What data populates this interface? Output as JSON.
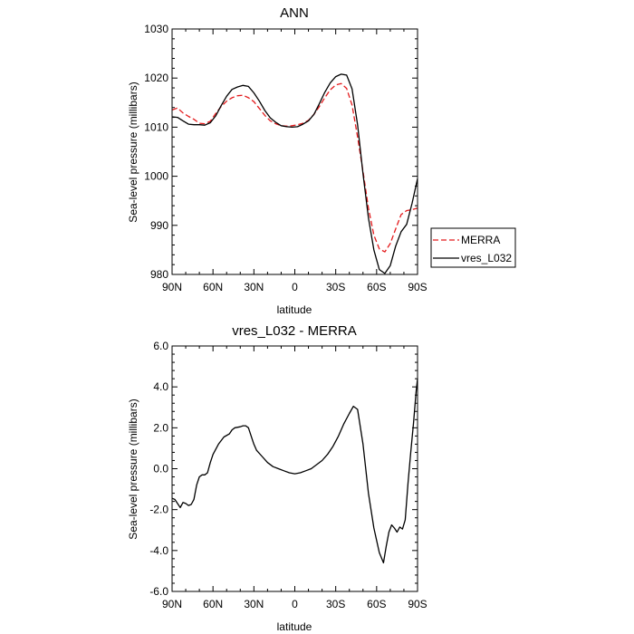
{
  "chart_data": [
    {
      "type": "line",
      "title": "ANN",
      "xlabel": "latitude",
      "ylabel": "Sea-level pressure (millibars)",
      "x_ticks": [
        "90N",
        "60N",
        "30N",
        "0",
        "30S",
        "60S",
        "90S"
      ],
      "x_tick_values": [
        -90,
        -60,
        -30,
        0,
        30,
        60,
        90
      ],
      "xlim": [
        -90,
        90
      ],
      "ylim": [
        980,
        1030
      ],
      "y_ticks": [
        "980",
        "990",
        "1000",
        "1010",
        "1020",
        "1030"
      ],
      "y_tick_values": [
        980,
        990,
        1000,
        1010,
        1020,
        1030
      ],
      "legend_position": "outside-right-bottom",
      "series": [
        {
          "name": "MERRA",
          "color": "#e41a1c",
          "dash": "dashed",
          "points": [
            [
              -90,
              1013.5
            ],
            [
              -86,
              1013.9
            ],
            [
              -82,
              1012.9
            ],
            [
              -78,
              1012.2
            ],
            [
              -74,
              1011.6
            ],
            [
              -70,
              1010.8
            ],
            [
              -66,
              1010.7
            ],
            [
              -62,
              1011.2
            ],
            [
              -58,
              1012.8
            ],
            [
              -54,
              1014.2
            ],
            [
              -50,
              1015.3
            ],
            [
              -46,
              1016.0
            ],
            [
              -42,
              1016.4
            ],
            [
              -38,
              1016.5
            ],
            [
              -34,
              1016.0
            ],
            [
              -30,
              1015.2
            ],
            [
              -26,
              1013.8
            ],
            [
              -22,
              1012.4
            ],
            [
              -18,
              1011.3
            ],
            [
              -14,
              1010.7
            ],
            [
              -10,
              1010.3
            ],
            [
              -6,
              1010.2
            ],
            [
              -2,
              1010.3
            ],
            [
              2,
              1010.5
            ],
            [
              6,
              1010.8
            ],
            [
              10,
              1011.4
            ],
            [
              14,
              1012.6
            ],
            [
              18,
              1014.2
            ],
            [
              22,
              1016.0
            ],
            [
              26,
              1017.6
            ],
            [
              30,
              1018.6
            ],
            [
              34,
              1018.9
            ],
            [
              38,
              1017.9
            ],
            [
              42,
              1014.5
            ],
            [
              46,
              1008.0
            ],
            [
              50,
              1001.0
            ],
            [
              54,
              993.5
            ],
            [
              58,
              988.0
            ],
            [
              62,
              985.2
            ],
            [
              66,
              984.6
            ],
            [
              70,
              986.3
            ],
            [
              74,
              989.3
            ],
            [
              78,
              992.2
            ],
            [
              82,
              993.0
            ],
            [
              86,
              993.2
            ],
            [
              90,
              993.5
            ]
          ]
        },
        {
          "name": "vres_L032",
          "color": "#000000",
          "dash": "solid",
          "points": [
            [
              -90,
              1012.1
            ],
            [
              -86,
              1012.0
            ],
            [
              -82,
              1011.3
            ],
            [
              -78,
              1010.6
            ],
            [
              -74,
              1010.5
            ],
            [
              -70,
              1010.5
            ],
            [
              -66,
              1010.4
            ],
            [
              -62,
              1010.9
            ],
            [
              -58,
              1012.3
            ],
            [
              -54,
              1014.4
            ],
            [
              -50,
              1016.3
            ],
            [
              -46,
              1017.7
            ],
            [
              -42,
              1018.2
            ],
            [
              -38,
              1018.5
            ],
            [
              -34,
              1018.3
            ],
            [
              -30,
              1017.0
            ],
            [
              -26,
              1015.3
            ],
            [
              -22,
              1013.4
            ],
            [
              -18,
              1011.9
            ],
            [
              -14,
              1011.0
            ],
            [
              -10,
              1010.3
            ],
            [
              -6,
              1010.1
            ],
            [
              -2,
              1010.0
            ],
            [
              2,
              1010.1
            ],
            [
              6,
              1010.6
            ],
            [
              10,
              1011.3
            ],
            [
              14,
              1012.6
            ],
            [
              18,
              1014.8
            ],
            [
              22,
              1017.1
            ],
            [
              26,
              1019.0
            ],
            [
              30,
              1020.3
            ],
            [
              34,
              1020.8
            ],
            [
              38,
              1020.6
            ],
            [
              42,
              1017.8
            ],
            [
              46,
              1010.5
            ],
            [
              50,
              1000.5
            ],
            [
              54,
              991.5
            ],
            [
              58,
              985.0
            ],
            [
              62,
              981.0
            ],
            [
              66,
              980.2
            ],
            [
              70,
              981.8
            ],
            [
              74,
              985.8
            ],
            [
              78,
              988.7
            ],
            [
              82,
              990.2
            ],
            [
              86,
              994.5
            ],
            [
              90,
              999.5
            ]
          ]
        }
      ]
    },
    {
      "type": "line",
      "title": "vres_L032 - MERRA",
      "xlabel": "latitude",
      "ylabel": "Sea-level pressure (millibars)",
      "x_ticks": [
        "90N",
        "60N",
        "30N",
        "0",
        "30S",
        "60S",
        "90S"
      ],
      "x_tick_values": [
        -90,
        -60,
        -30,
        0,
        30,
        60,
        90
      ],
      "xlim": [
        -90,
        90
      ],
      "ylim": [
        -6,
        6
      ],
      "y_ticks": [
        "-6.0",
        "-4.0",
        "-2.0",
        "0.0",
        "2.0",
        "4.0",
        "6.0"
      ],
      "y_tick_values": [
        -6,
        -4,
        -2,
        0,
        2,
        4,
        6
      ],
      "series": [
        {
          "name": "",
          "color": "#000000",
          "dash": "solid",
          "points": [
            [
              -90,
              -1.45
            ],
            [
              -88,
              -1.5
            ],
            [
              -86,
              -1.7
            ],
            [
              -84,
              -1.9
            ],
            [
              -82,
              -1.65
            ],
            [
              -80,
              -1.7
            ],
            [
              -78,
              -1.8
            ],
            [
              -76,
              -1.75
            ],
            [
              -74,
              -1.5
            ],
            [
              -72,
              -0.8
            ],
            [
              -70,
              -0.4
            ],
            [
              -68,
              -0.3
            ],
            [
              -66,
              -0.3
            ],
            [
              -64,
              -0.2
            ],
            [
              -62,
              0.3
            ],
            [
              -60,
              0.7
            ],
            [
              -56,
              1.2
            ],
            [
              -52,
              1.55
            ],
            [
              -48,
              1.7
            ],
            [
              -46,
              1.9
            ],
            [
              -44,
              2.0
            ],
            [
              -40,
              2.05
            ],
            [
              -38,
              2.1
            ],
            [
              -36,
              2.1
            ],
            [
              -34,
              2.0
            ],
            [
              -32,
              1.6
            ],
            [
              -30,
              1.2
            ],
            [
              -28,
              0.9
            ],
            [
              -24,
              0.6
            ],
            [
              -20,
              0.3
            ],
            [
              -16,
              0.1
            ],
            [
              -12,
              0.0
            ],
            [
              -8,
              -0.1
            ],
            [
              -4,
              -0.2
            ],
            [
              0,
              -0.25
            ],
            [
              4,
              -0.2
            ],
            [
              8,
              -0.1
            ],
            [
              12,
              0.0
            ],
            [
              16,
              0.2
            ],
            [
              20,
              0.4
            ],
            [
              24,
              0.7
            ],
            [
              28,
              1.1
            ],
            [
              32,
              1.6
            ],
            [
              36,
              2.2
            ],
            [
              40,
              2.7
            ],
            [
              43,
              3.05
            ],
            [
              46,
              2.9
            ],
            [
              50,
              1.2
            ],
            [
              54,
              -1.2
            ],
            [
              58,
              -2.9
            ],
            [
              62,
              -4.1
            ],
            [
              65,
              -4.6
            ],
            [
              67,
              -3.8
            ],
            [
              69,
              -3.1
            ],
            [
              71,
              -2.75
            ],
            [
              73,
              -2.9
            ],
            [
              75,
              -3.1
            ],
            [
              77,
              -2.85
            ],
            [
              79,
              -2.95
            ],
            [
              81,
              -2.5
            ],
            [
              83,
              -0.7
            ],
            [
              85,
              0.8
            ],
            [
              87,
              2.2
            ],
            [
              89,
              3.8
            ],
            [
              90,
              4.4
            ]
          ]
        }
      ]
    }
  ]
}
